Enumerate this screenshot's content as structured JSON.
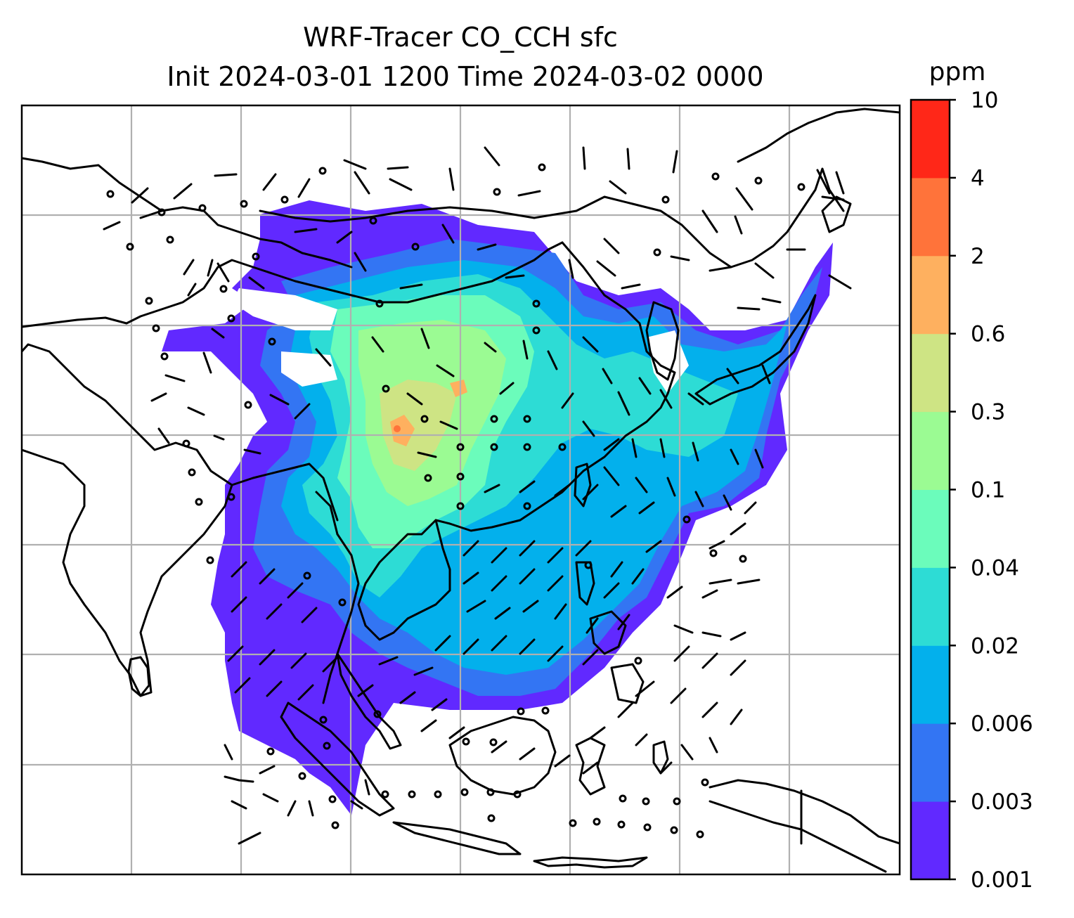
{
  "figure": {
    "title_line1": "WRF-Tracer CO_CCH sfc",
    "title_line2": "Init 2024-03-01 1200 Time 2024-03-02 0000"
  },
  "colorbar": {
    "unit": "ppm",
    "levels": [
      "0.001",
      "0.003",
      "0.006",
      "0.02",
      "0.04",
      "0.1",
      "0.3",
      "0.6",
      "2",
      "4",
      "10"
    ],
    "colors": [
      "#6129ff",
      "#3375f3",
      "#03b0ec",
      "#2ddcd5",
      "#6bfcbb",
      "#9bfb93",
      "#cee484",
      "#feb05f",
      "#ff733a",
      "#ff2718"
    ]
  },
  "map": {
    "field": "CO_CCH surface concentration",
    "gridlines": true,
    "wind_barbs": true
  }
}
